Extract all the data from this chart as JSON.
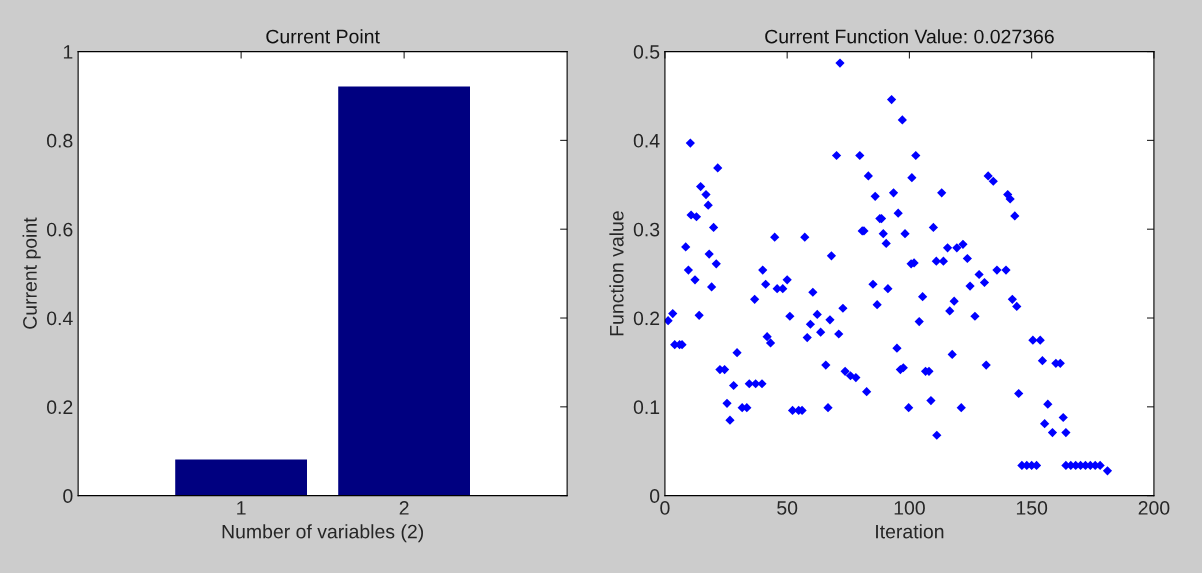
{
  "chart_data": [
    {
      "type": "bar",
      "title": "Current Point",
      "xlabel": "Number of variables (2)",
      "ylabel": "Current point",
      "categories": [
        "1",
        "2"
      ],
      "values": [
        0.08,
        0.92
      ],
      "color": "#000080",
      "ylim": [
        0,
        1
      ],
      "yticks": [
        0,
        0.2,
        0.4,
        0.6,
        0.8,
        1
      ],
      "grid": false
    },
    {
      "type": "scatter",
      "title": "Current Function Value: 0.027366",
      "xlabel": "Iteration",
      "ylabel": "Function value",
      "color": "#0000ff",
      "marker": "diamond",
      "xlim": [
        0,
        200
      ],
      "xticks": [
        0,
        50,
        100,
        150,
        200
      ],
      "ylim": [
        0,
        0.5
      ],
      "yticks": [
        0,
        0.1,
        0.2,
        0.3,
        0.4,
        0.5
      ],
      "grid": false,
      "x": [
        1.3,
        3.2,
        4,
        6,
        7,
        8.5,
        9.6,
        10.4,
        10.7,
        12.3,
        12.9,
        14,
        14.6,
        16.8,
        17.7,
        18.1,
        19.1,
        19.9,
        21,
        21.6,
        22.5,
        24.4,
        25.4,
        26.6,
        28.1,
        29.5,
        31.6,
        33.5,
        34.5,
        37.1,
        39.7,
        36.7,
        40,
        41.2,
        41.8,
        43.2,
        44.9,
        45.9,
        48.2,
        50,
        51.1,
        52.2,
        54.7,
        56.1,
        57.2,
        58.2,
        59.5,
        60.5,
        62.3,
        63.7,
        65.8,
        66.7,
        67.5,
        68.1,
        70.2,
        71.1,
        71.6,
        72.8,
        73.7,
        75.9,
        78.1,
        79.7,
        80.7,
        81.4,
        82.5,
        83.2,
        85.1,
        86,
        86.8,
        87.9,
        88.6,
        89.3,
        90.5,
        91.2,
        92.7,
        93.5,
        94.9,
        95.4,
        96.3,
        97.1,
        97.5,
        98.2,
        99.7,
        100.7,
        101,
        101.9,
        102.6,
        104,
        105.4,
        106.6,
        108,
        108.8,
        109.8,
        111,
        111.2,
        113.2,
        113.9,
        115.6,
        116.5,
        117.5,
        118.3,
        119.4,
        121.2,
        121.9,
        123.7,
        124.8,
        126.8,
        128.5,
        130.7,
        131.4,
        132.2,
        134.3,
        135.8,
        139.5,
        140.2,
        141.2,
        142.1,
        143.1,
        143.9,
        144.7,
        146,
        148,
        150,
        152,
        150.5,
        153.5,
        154.4,
        155.3,
        156.6,
        158.5,
        159.9,
        161.7,
        162.9,
        164,
        164,
        166,
        168,
        170,
        172,
        174,
        176,
        178,
        181
      ],
      "values": [
        0.197,
        0.205,
        0.17,
        0.17,
        0.17,
        0.28,
        0.254,
        0.397,
        0.316,
        0.243,
        0.314,
        0.203,
        0.348,
        0.339,
        0.327,
        0.272,
        0.235,
        0.302,
        0.261,
        0.369,
        0.142,
        0.142,
        0.104,
        0.085,
        0.124,
        0.161,
        0.099,
        0.099,
        0.126,
        0.126,
        0.126,
        0.221,
        0.254,
        0.238,
        0.179,
        0.172,
        0.291,
        0.233,
        0.233,
        0.243,
        0.202,
        0.096,
        0.096,
        0.096,
        0.291,
        0.178,
        0.193,
        0.229,
        0.204,
        0.184,
        0.147,
        0.099,
        0.198,
        0.27,
        0.383,
        0.182,
        0.487,
        0.211,
        0.14,
        0.135,
        0.133,
        0.383,
        0.298,
        0.298,
        0.117,
        0.36,
        0.238,
        0.337,
        0.215,
        0.312,
        0.312,
        0.295,
        0.284,
        0.233,
        0.446,
        0.341,
        0.166,
        0.318,
        0.142,
        0.423,
        0.144,
        0.295,
        0.099,
        0.261,
        0.358,
        0.262,
        0.383,
        0.196,
        0.224,
        0.14,
        0.14,
        0.107,
        0.302,
        0.264,
        0.068,
        0.341,
        0.264,
        0.279,
        0.208,
        0.159,
        0.219,
        0.279,
        0.099,
        0.283,
        0.267,
        0.236,
        0.202,
        0.249,
        0.24,
        0.147,
        0.36,
        0.354,
        0.254,
        0.254,
        0.339,
        0.334,
        0.221,
        0.315,
        0.213,
        0.115,
        0.034,
        0.034,
        0.034,
        0.034,
        0.175,
        0.175,
        0.152,
        0.081,
        0.103,
        0.071,
        0.149,
        0.149,
        0.088,
        0.071,
        0.034,
        0.034,
        0.034,
        0.034,
        0.034,
        0.034,
        0.034,
        0.034,
        0.028
      ]
    }
  ]
}
